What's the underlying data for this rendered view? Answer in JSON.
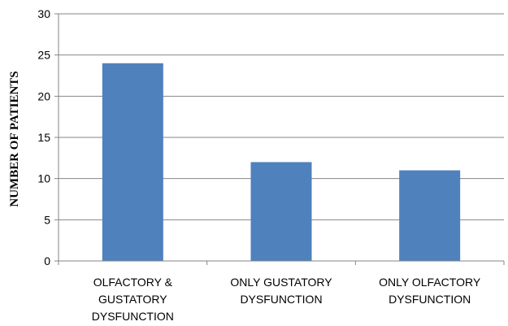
{
  "chart_data": {
    "type": "bar",
    "title": "",
    "xlabel": "",
    "ylabel": "NUMBER OF PATIENTS",
    "categories": [
      [
        "OLFACTORY &",
        "GUSTATORY",
        "DYSFUNCTION"
      ],
      [
        "ONLY GUSTATORY",
        "DYSFUNCTION"
      ],
      [
        "ONLY OLFACTORY",
        "DYSFUNCTION"
      ]
    ],
    "values": [
      24,
      12,
      11
    ],
    "ylim": [
      0,
      30
    ],
    "yticks": [
      "0",
      "5",
      "10",
      "15",
      "20",
      "25",
      "30"
    ],
    "grid": true,
    "legend": "none",
    "bar_color": "#4F81BD"
  }
}
